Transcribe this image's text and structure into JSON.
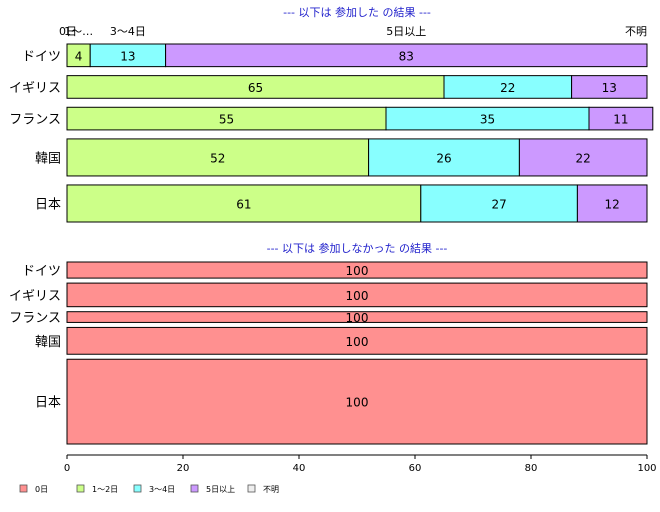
{
  "chart_data": {
    "type": "bar",
    "orientation": "horizontal",
    "stacked": true,
    "xlim": [
      0,
      100
    ],
    "x_ticks": [
      0,
      20,
      40,
      60,
      80,
      100
    ],
    "legend": {
      "placement": "bottom",
      "items": [
        {
          "name": "0日",
          "color": "#ff9090"
        },
        {
          "name": "1～2日",
          "color": "#ccff88"
        },
        {
          "name": "3～4日",
          "color": "#88ffff"
        },
        {
          "name": "5日以上",
          "color": "#cc99ff"
        },
        {
          "name": "不明",
          "color": "#eeeeee"
        }
      ]
    },
    "panels": [
      {
        "title": "--- 以下は 参加した の結果 ---",
        "top_labels": [
          {
            "text": "0日",
            "x": 0
          },
          {
            "text": "1～…",
            "x": 2
          },
          {
            "text": "3～4日",
            "x": 10.5
          },
          {
            "text": "5日以上",
            "x": 58.5
          },
          {
            "text": "不明",
            "x": 100
          }
        ],
        "categories": [
          "ドイツ",
          "イギリス",
          "フランス",
          "韓国",
          "日本"
        ],
        "weights": [
          22,
          22,
          22,
          36,
          36
        ],
        "series": [
          {
            "name": "1～2日",
            "values": [
              4,
              65,
              55,
              52,
              61
            ]
          },
          {
            "name": "3～4日",
            "values": [
              13,
              22,
              35,
              26,
              27
            ]
          },
          {
            "name": "5日以上",
            "values": [
              83,
              13,
              11,
              22,
              12
            ]
          }
        ]
      },
      {
        "title": "--- 以下は 参加しなかった の結果 ---",
        "categories": [
          "ドイツ",
          "イギリス",
          "フランス",
          "韓国",
          "日本"
        ],
        "weights": [
          15,
          22,
          10,
          25,
          79
        ],
        "series": [
          {
            "name": "0日",
            "values": [
              100,
              100,
              100,
              100,
              100
            ]
          }
        ]
      }
    ]
  }
}
